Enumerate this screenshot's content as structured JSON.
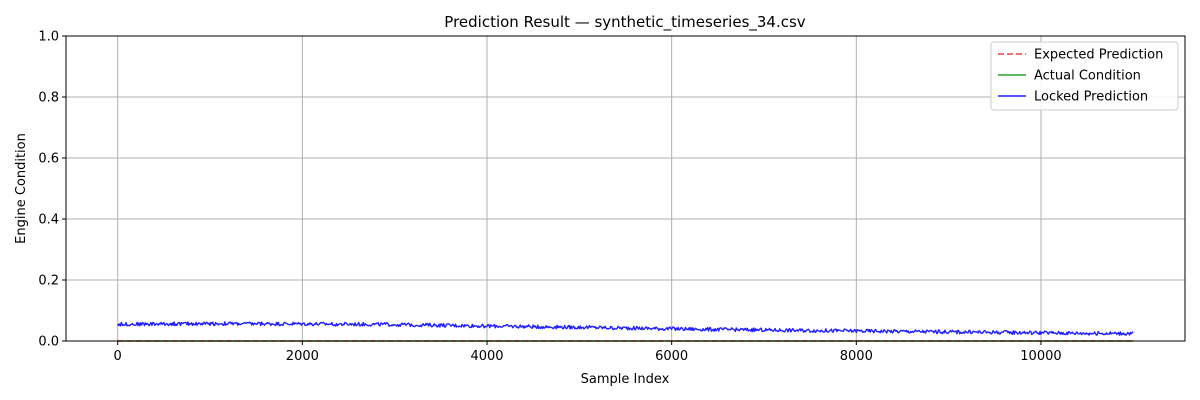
{
  "chart_data": {
    "type": "line",
    "title": "Prediction Result — synthetic_timeseries_34.csv",
    "xlabel": "Sample Index",
    "ylabel": "Engine Condition",
    "xlim": [
      -560,
      11560
    ],
    "ylim": [
      0,
      1.0
    ],
    "xticks": [
      0,
      2000,
      4000,
      6000,
      8000,
      10000
    ],
    "xtick_labels": [
      "0",
      "2000",
      "4000",
      "6000",
      "8000",
      "10000"
    ],
    "yticks": [
      0.0,
      0.2,
      0.4,
      0.6,
      0.8,
      1.0
    ],
    "ytick_labels": [
      "0.0",
      "0.2",
      "0.4",
      "0.6",
      "0.8",
      "1.0"
    ],
    "grid": true,
    "legend_position": "top-right",
    "series": [
      {
        "name": "Expected Prediction",
        "color": "#e8413c",
        "style": "dashed",
        "x": [
          0,
          11000
        ],
        "y": [
          0.0,
          0.0
        ]
      },
      {
        "name": "Actual Condition",
        "color": "#2ca02c",
        "style": "solid",
        "x": [
          0,
          11000
        ],
        "y": [
          0.0,
          0.0
        ]
      },
      {
        "name": "Locked Prediction",
        "color": "#1f1fff",
        "style": "solid",
        "x": [
          0,
          1000,
          2000,
          3000,
          4000,
          5000,
          6000,
          7000,
          8000,
          9000,
          10000,
          10600,
          11000
        ],
        "y": [
          0.055,
          0.057,
          0.056,
          0.054,
          0.049,
          0.045,
          0.04,
          0.036,
          0.033,
          0.03,
          0.027,
          0.025,
          0.025
        ]
      }
    ]
  }
}
